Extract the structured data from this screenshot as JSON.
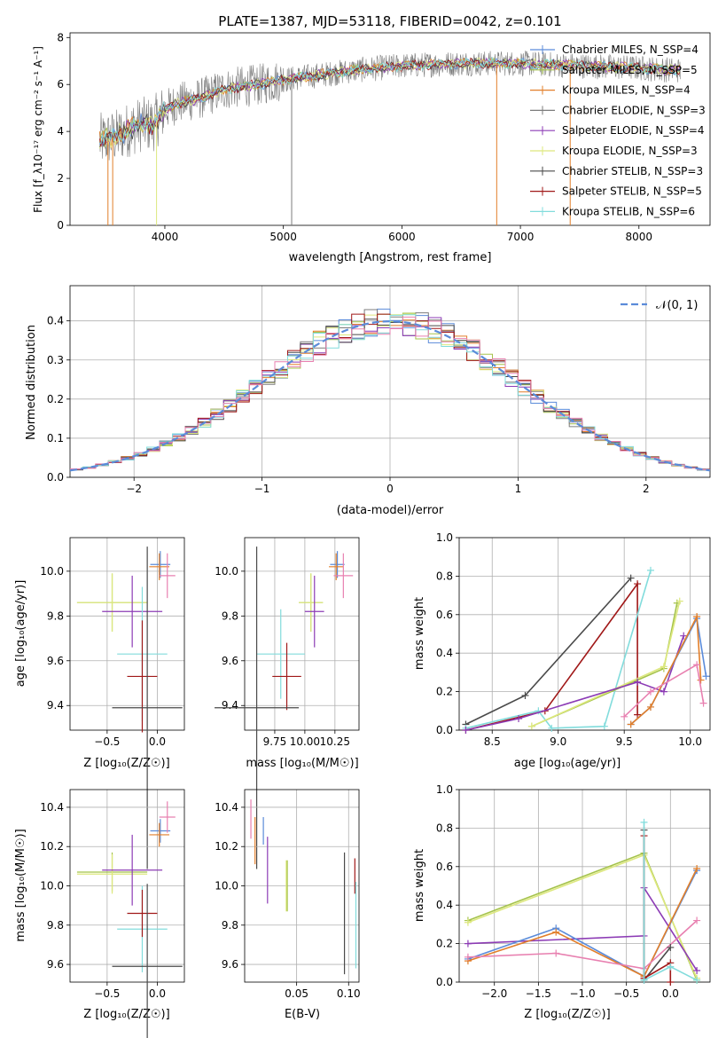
{
  "colors": {
    "chabrier_miles": "#5b8bd9",
    "salpeter_miles": "#a5c34b",
    "kroupa_miles": "#e27f2a",
    "chabrier_elodie": "#7c7c7c",
    "salpeter_elodie": "#8c3bb5",
    "kroupa_elodie": "#dde87e",
    "chabrier_stelib": "#4a4a4a",
    "salpeter_stelib": "#a01818",
    "kroupa_stelib": "#82dcdc",
    "pink": "#e880b0",
    "normal_curve": "#5b8bd9",
    "grid": "#b0b0b0"
  },
  "chart_data": [
    {
      "type": "line",
      "title": "PLATE=1387, MJD=53118, FIBERID=0042, z=0.101",
      "xlabel": "wavelength [Angstrom, rest frame]",
      "ylabel": "Flux [f_λ10⁻¹⁷ erg cm⁻² s⁻¹ A⁻¹]",
      "xlim": [
        3200,
        8600
      ],
      "ylim": [
        0,
        8.2
      ],
      "xticks": [
        "4000",
        "5000",
        "6000",
        "7000",
        "8000"
      ],
      "yticks": [
        "0",
        "2",
        "4",
        "6",
        "8"
      ],
      "legend": "right",
      "series": [
        {
          "name": "Chabrier MILES, N_SSP=4"
        },
        {
          "name": "Salpeter MILES, N_SSP=5"
        },
        {
          "name": "Kroupa MILES, N_SSP=4"
        },
        {
          "name": "Chabrier ELODIE, N_SSP=3"
        },
        {
          "name": "Salpeter ELODIE, N_SSP=4"
        },
        {
          "name": "Kroupa ELODIE, N_SSP=3"
        },
        {
          "name": "Chabrier STELIB, N_SSP=3"
        },
        {
          "name": "Salpeter STELIB, N_SSP=5"
        },
        {
          "name": "Kroupa STELIB, N_SSP=6"
        }
      ],
      "continuum": {
        "x": [
          3450,
          3600,
          3700,
          3800,
          3900,
          4000,
          4100,
          4300,
          4500,
          4800,
          5000,
          5300,
          5600,
          6000,
          6500,
          7000,
          7500,
          8000,
          8350
        ],
        "y": [
          3.6,
          3.8,
          4.1,
          4.3,
          4.3,
          4.9,
          5.2,
          5.4,
          5.8,
          6.0,
          6.2,
          6.4,
          6.6,
          6.8,
          6.9,
          6.9,
          6.8,
          6.7,
          6.6
        ]
      }
    },
    {
      "type": "histogram",
      "xlabel": "(data-model)/error",
      "ylabel": "Normed distribution",
      "xlim": [
        -2.5,
        2.5
      ],
      "ylim": [
        0,
        0.49
      ],
      "xticks": [
        "−2",
        "−1",
        "0",
        "1",
        "2"
      ],
      "yticks": [
        "0.0",
        "0.1",
        "0.2",
        "0.3",
        "0.4"
      ],
      "legend": "top-right",
      "normal_label": "𝒩(0, 1)",
      "bin_width": 0.1
    },
    {
      "type": "scatter",
      "xlabel": "Z [log₁₀(Z/Z☉)]",
      "ylabel": "age  [log₁₀(age/yr)]",
      "xlim": [
        -0.87,
        0.27
      ],
      "ylim": [
        9.29,
        10.15
      ],
      "xticks": [
        "−0.5",
        "0.0"
      ],
      "yticks": [
        "9.4",
        "9.6",
        "9.8",
        "10.0"
      ],
      "errorbars": [
        {
          "color": "chabrier_miles",
          "x": 0.03,
          "xerr": 0.1,
          "y": 10.03,
          "yerr": 0.06
        },
        {
          "color": "salpeter_miles",
          "x": -0.45,
          "xerr": 0.35,
          "y": 9.86,
          "yerr": 0.13
        },
        {
          "color": "kroupa_miles",
          "x": 0.02,
          "xerr": 0.1,
          "y": 10.02,
          "yerr": 0.06
        },
        {
          "color": "kroupa_elodie",
          "x": -0.45,
          "xerr": 0.35,
          "y": 9.86,
          "yerr": 0.13
        },
        {
          "color": "salpeter_elodie",
          "x": -0.25,
          "xerr": 0.3,
          "y": 9.82,
          "yerr": 0.16
        },
        {
          "color": "kroupa_stelib",
          "x": -0.15,
          "xerr": 0.25,
          "y": 9.63,
          "yerr": 0.3
        },
        {
          "color": "salpeter_stelib",
          "x": -0.15,
          "xerr": 0.15,
          "y": 9.53,
          "yerr": 0.25
        },
        {
          "color": "chabrier_stelib",
          "x": -0.1,
          "xerr": 0.35,
          "y": 9.39,
          "yerr": 0.72
        },
        {
          "color": "pink",
          "x": 0.1,
          "xerr": 0.08,
          "y": 9.98,
          "yerr": 0.1
        }
      ]
    },
    {
      "type": "scatter",
      "xlabel": "mass [log₁₀(M/M☉)]",
      "ylabel": "",
      "xlim": [
        9.5,
        10.45
      ],
      "ylim": [
        9.29,
        10.15
      ],
      "xticks": [
        "9.75",
        "10.00",
        "10.25"
      ],
      "yticks": [
        "9.4",
        "9.6",
        "9.8",
        "10.0"
      ],
      "errorbars": [
        {
          "color": "chabrier_miles",
          "x": 10.27,
          "xerr": 0.06,
          "y": 10.03,
          "yerr": 0.06
        },
        {
          "color": "salpeter_miles",
          "x": 10.05,
          "xerr": 0.1,
          "y": 9.86,
          "yerr": 0.13
        },
        {
          "color": "kroupa_miles",
          "x": 10.26,
          "xerr": 0.06,
          "y": 10.02,
          "yerr": 0.06
        },
        {
          "color": "kroupa_elodie",
          "x": 10.05,
          "xerr": 0.1,
          "y": 9.86,
          "yerr": 0.13
        },
        {
          "color": "salpeter_elodie",
          "x": 10.08,
          "xerr": 0.08,
          "y": 9.82,
          "yerr": 0.16
        },
        {
          "color": "kroupa_stelib",
          "x": 9.8,
          "xerr": 0.2,
          "y": 9.63,
          "yerr": 0.2
        },
        {
          "color": "salpeter_stelib",
          "x": 9.85,
          "xerr": 0.12,
          "y": 9.53,
          "yerr": 0.15
        },
        {
          "color": "chabrier_stelib",
          "x": 9.6,
          "xerr": 0.35,
          "y": 9.39,
          "yerr": 0.72
        },
        {
          "color": "pink",
          "x": 10.32,
          "xerr": 0.08,
          "y": 9.98,
          "yerr": 0.1
        }
      ]
    },
    {
      "type": "line",
      "xlabel": "age  [log₁₀(age/yr)]",
      "ylabel": "mass weight",
      "xlim": [
        8.25,
        10.15
      ],
      "ylim": [
        0,
        1.0
      ],
      "xticks": [
        "8.5",
        "9.0",
        "9.5",
        "10.0"
      ],
      "yticks": [
        "0.0",
        "0.2",
        "0.4",
        "0.6",
        "0.8",
        "1.0"
      ],
      "series": [
        {
          "color": "chabrier_stelib",
          "x": [
            8.3,
            8.75,
            9.55
          ],
          "y": [
            0.03,
            0.18,
            0.79
          ]
        },
        {
          "color": "salpeter_stelib",
          "x": [
            8.3,
            8.9,
            9.6,
            9.6
          ],
          "y": [
            0.0,
            0.1,
            0.76,
            0.08
          ]
        },
        {
          "color": "kroupa_stelib",
          "x": [
            8.3,
            8.85,
            8.95,
            9.35,
            9.7
          ],
          "y": [
            0.01,
            0.1,
            0.01,
            0.02,
            0.83
          ]
        },
        {
          "color": "salpeter_miles",
          "x": [
            8.8,
            9.8,
            9.9
          ],
          "y": [
            0.02,
            0.32,
            0.66
          ]
        },
        {
          "color": "kroupa_elodie",
          "x": [
            8.8,
            9.8,
            9.92
          ],
          "y": [
            0.02,
            0.33,
            0.67
          ]
        },
        {
          "color": "salpeter_elodie",
          "x": [
            8.3,
            8.7,
            9.6,
            9.8,
            9.95
          ],
          "y": [
            0.0,
            0.06,
            0.25,
            0.2,
            0.49
          ]
        },
        {
          "color": "chabrier_miles",
          "x": [
            9.55,
            9.7,
            10.05,
            10.12
          ],
          "y": [
            0.03,
            0.12,
            0.58,
            0.28
          ]
        },
        {
          "color": "kroupa_miles",
          "x": [
            9.55,
            9.7,
            10.05,
            10.08
          ],
          "y": [
            0.03,
            0.12,
            0.59,
            0.26
          ]
        },
        {
          "color": "pink",
          "x": [
            9.5,
            9.7,
            10.05,
            10.1
          ],
          "y": [
            0.07,
            0.2,
            0.34,
            0.14
          ]
        }
      ]
    },
    {
      "type": "scatter",
      "xlabel": "Z [log₁₀(Z/Z☉)]",
      "ylabel": "mass [log₁₀(M/M☉)]",
      "xlim": [
        -0.87,
        0.27
      ],
      "ylim": [
        9.51,
        10.49
      ],
      "xticks": [
        "−0.5",
        "0.0"
      ],
      "yticks": [
        "9.6",
        "9.8",
        "10.0",
        "10.2",
        "10.4"
      ],
      "errorbars": [
        {
          "color": "chabrier_miles",
          "x": 0.03,
          "xerr": 0.1,
          "y": 10.28,
          "yerr": 0.06
        },
        {
          "color": "salpeter_miles",
          "x": -0.45,
          "xerr": 0.35,
          "y": 10.07,
          "yerr": 0.1
        },
        {
          "color": "kroupa_miles",
          "x": 0.02,
          "xerr": 0.1,
          "y": 10.26,
          "yerr": 0.06
        },
        {
          "color": "kroupa_elodie",
          "x": -0.45,
          "xerr": 0.35,
          "y": 10.06,
          "yerr": 0.1
        },
        {
          "color": "salpeter_elodie",
          "x": -0.25,
          "xerr": 0.3,
          "y": 10.08,
          "yerr": 0.18
        },
        {
          "color": "kroupa_stelib",
          "x": -0.15,
          "xerr": 0.25,
          "y": 9.78,
          "yerr": 0.22
        },
        {
          "color": "salpeter_stelib",
          "x": -0.15,
          "xerr": 0.15,
          "y": 9.86,
          "yerr": 0.12
        },
        {
          "color": "chabrier_stelib",
          "x": -0.1,
          "xerr": 0.35,
          "y": 9.59,
          "yerr": 0.42
        },
        {
          "color": "pink",
          "x": 0.1,
          "xerr": 0.08,
          "y": 10.35,
          "yerr": 0.08
        }
      ]
    },
    {
      "type": "scatter",
      "xlabel": "E(B-V)",
      "ylabel": "",
      "xlim": [
        0.0,
        0.11
      ],
      "ylim": [
        9.51,
        10.49
      ],
      "xticks": [
        "0.05",
        "0.10"
      ],
      "yticks": [
        "9.6",
        "9.8",
        "10.0",
        "10.2",
        "10.4"
      ],
      "errorbars": [
        {
          "color": "pink",
          "x": 0.006,
          "y": 10.34,
          "yerr": 0.1
        },
        {
          "color": "kroupa_miles",
          "x": 0.01,
          "y": 10.23,
          "yerr": 0.12
        },
        {
          "color": "chabrier_miles",
          "x": 0.018,
          "y": 10.28,
          "yerr": 0.07
        },
        {
          "color": "salpeter_elodie",
          "x": 0.022,
          "y": 10.08,
          "yerr": 0.17
        },
        {
          "color": "kroupa_elodie",
          "x": 0.04,
          "y": 10.0,
          "yerr": 0.13
        },
        {
          "color": "salpeter_miles",
          "x": 0.041,
          "y": 10.0,
          "yerr": 0.13
        },
        {
          "color": "chabrier_stelib",
          "x": 0.096,
          "y": 9.86,
          "yerr": 0.31
        },
        {
          "color": "salpeter_stelib",
          "x": 0.106,
          "y": 10.05,
          "yerr": 0.09
        },
        {
          "color": "kroupa_stelib",
          "x": 0.107,
          "y": 9.8,
          "yerr": 0.22
        }
      ]
    },
    {
      "type": "line",
      "xlabel": "Z [log₁₀(Z/Z☉)]",
      "ylabel": "mass weight",
      "xlim": [
        -2.4,
        0.45
      ],
      "ylim": [
        0,
        1.0
      ],
      "xticks": [
        "−2.0",
        "−1.5",
        "−1.0",
        "−0.5",
        "0.0"
      ],
      "yticks": [
        "0.0",
        "0.2",
        "0.4",
        "0.6",
        "0.8",
        "1.0"
      ],
      "series": [
        {
          "color": "salpeter_miles",
          "x": [
            -2.3,
            -0.3,
            0.3
          ],
          "y": [
            0.32,
            0.67,
            0.01
          ]
        },
        {
          "color": "kroupa_elodie",
          "x": [
            -2.3,
            -0.3,
            0.3
          ],
          "y": [
            0.31,
            0.66,
            0.02
          ]
        },
        {
          "color": "salpeter_elodie",
          "x": [
            -2.3,
            -0.3,
            -0.3,
            0.3
          ],
          "y": [
            0.2,
            0.24,
            0.49,
            0.06
          ]
        },
        {
          "color": "chabrier_miles",
          "x": [
            -2.3,
            -1.3,
            -0.3,
            0.3
          ],
          "y": [
            0.12,
            0.28,
            0.03,
            0.58
          ]
        },
        {
          "color": "kroupa_miles",
          "x": [
            -2.3,
            -1.3,
            -0.3,
            0.3
          ],
          "y": [
            0.11,
            0.26,
            0.03,
            0.59
          ]
        },
        {
          "color": "pink",
          "x": [
            -2.3,
            -1.3,
            -0.3,
            0.3
          ],
          "y": [
            0.13,
            0.15,
            0.07,
            0.32
          ]
        },
        {
          "color": "chabrier_stelib",
          "x": [
            -0.3,
            -0.3,
            0.0
          ],
          "y": [
            0.79,
            0.01,
            0.18
          ]
        },
        {
          "color": "salpeter_stelib",
          "x": [
            -0.3,
            -0.3,
            0.0,
            0.0
          ],
          "y": [
            0.76,
            0.02,
            0.1,
            0.0
          ]
        },
        {
          "color": "kroupa_stelib",
          "x": [
            -0.3,
            -0.3,
            0.0,
            0.3
          ],
          "y": [
            0.83,
            0.01,
            0.08,
            0.01
          ]
        }
      ]
    }
  ]
}
